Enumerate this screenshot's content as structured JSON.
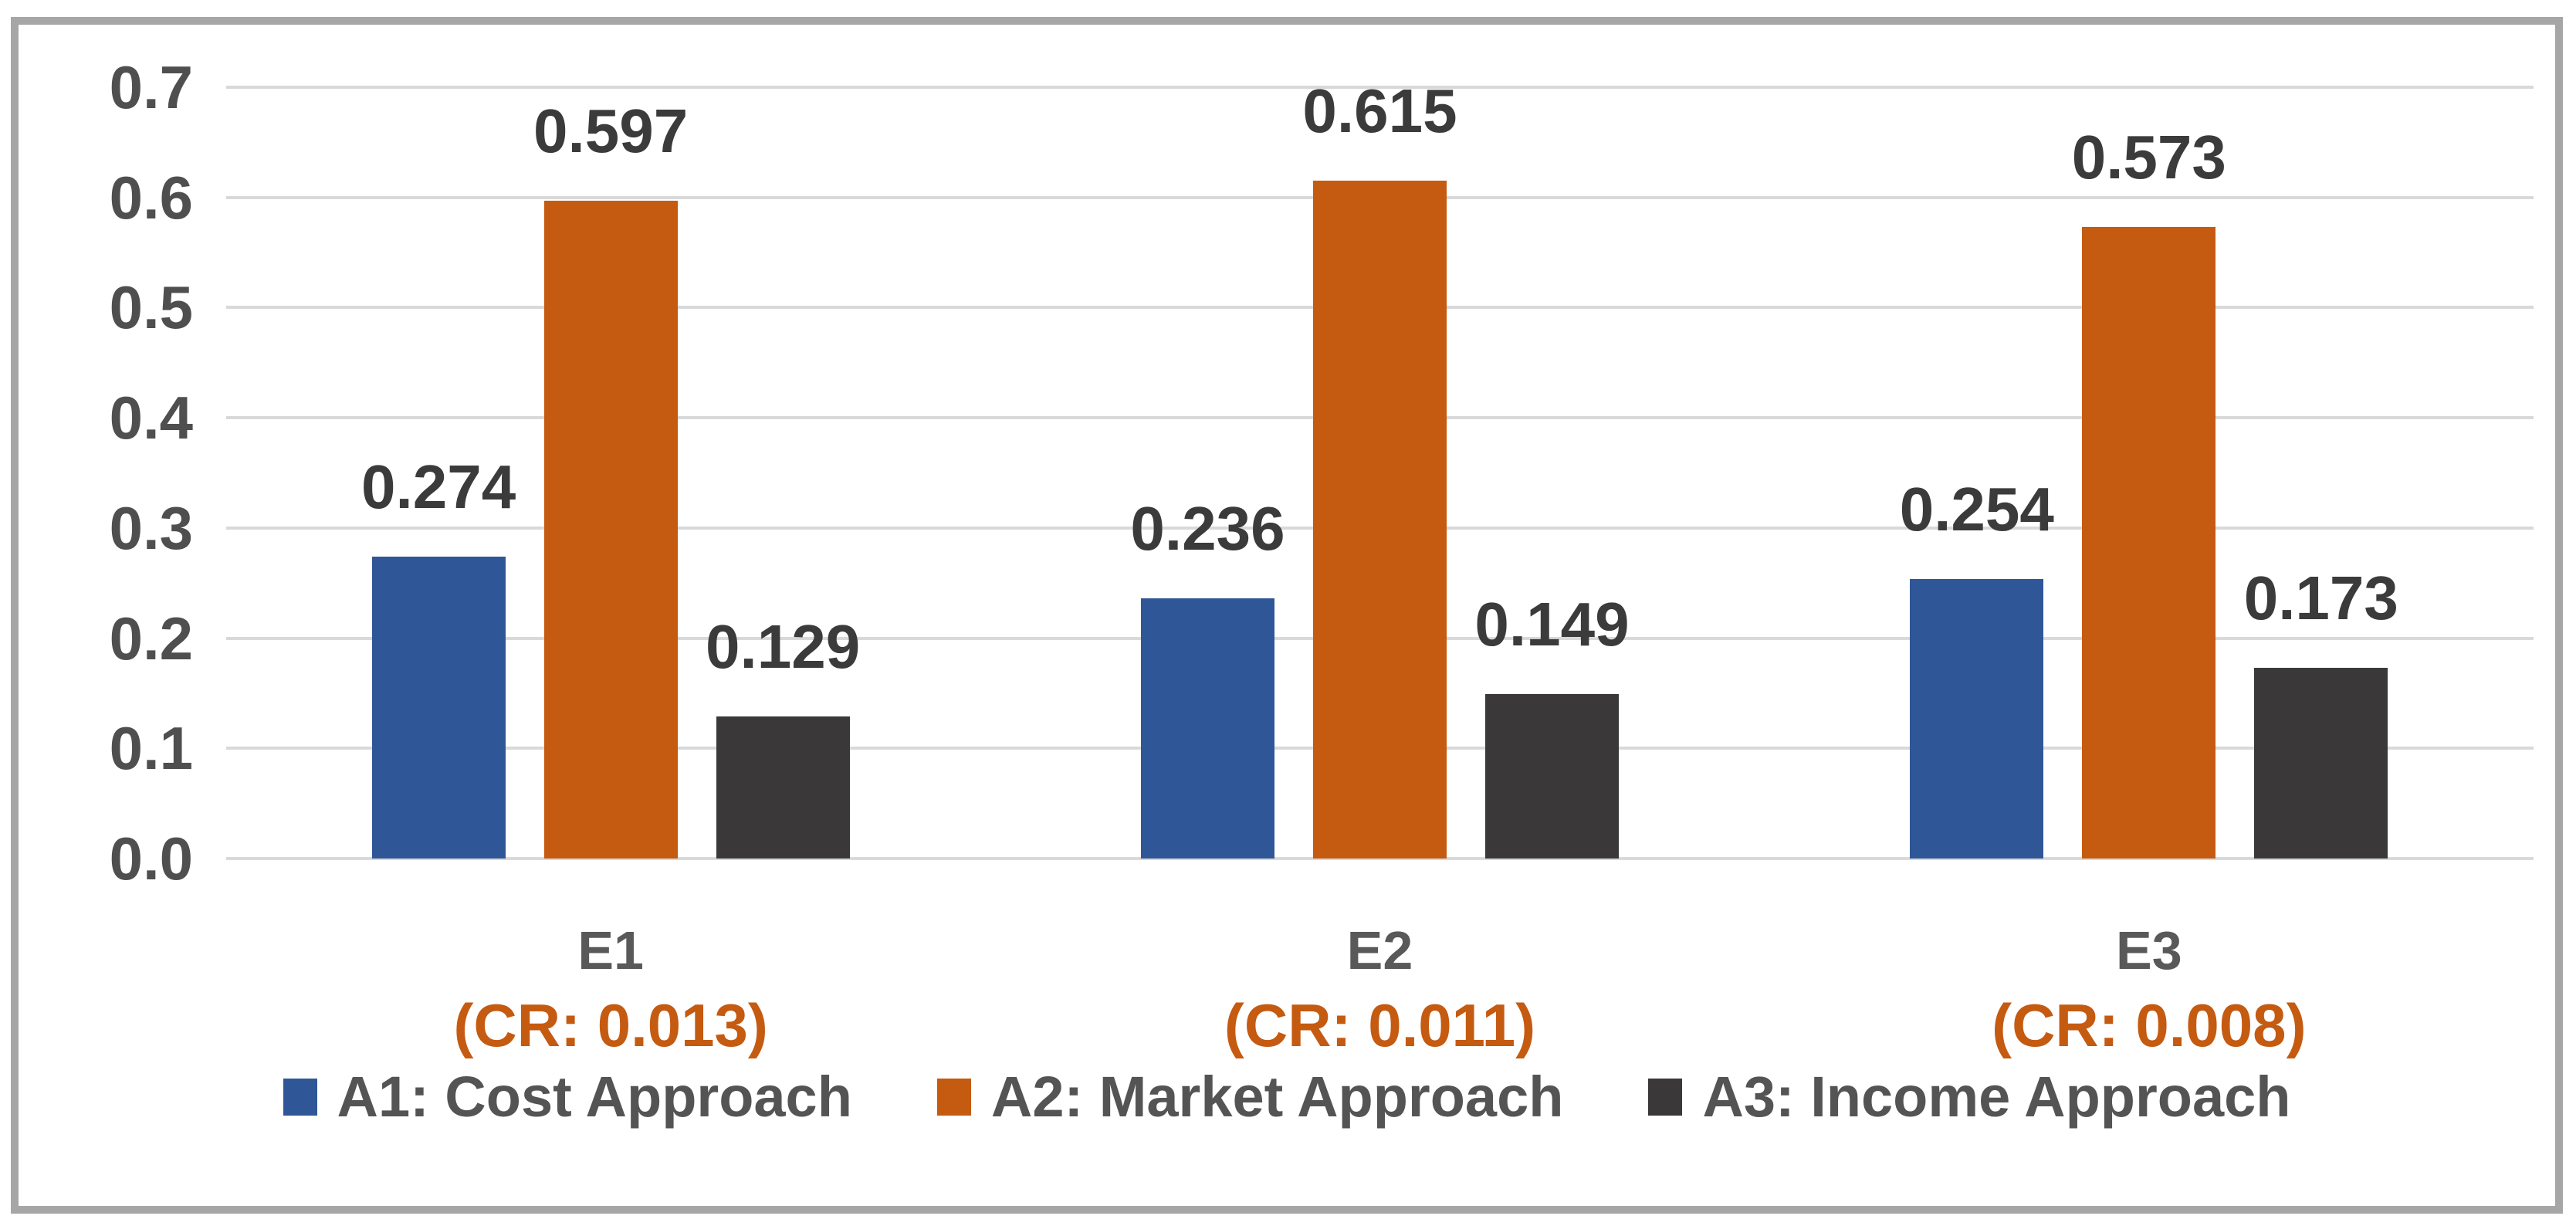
{
  "chart_data": {
    "type": "bar",
    "title": "",
    "categories": [
      "E1",
      "E2",
      "E3"
    ],
    "category_sublabels": [
      "(CR: 0.013)",
      "(CR: 0.011)",
      "(CR: 0.008)"
    ],
    "series": [
      {
        "name": "A1: Cost Approach",
        "color": "#2F5797",
        "values": [
          0.274,
          0.236,
          0.254
        ]
      },
      {
        "name": "A2: Market Approach",
        "color": "#C55A11",
        "values": [
          0.597,
          0.615,
          0.573
        ]
      },
      {
        "name": "A3: Income Approach",
        "color": "#3A3838",
        "values": [
          0.129,
          0.149,
          0.173
        ]
      }
    ],
    "y_ticks": [
      "0.0",
      "0.1",
      "0.2",
      "0.3",
      "0.4",
      "0.5",
      "0.6",
      "0.7"
    ],
    "ylim": [
      0,
      0.7
    ],
    "grid": true,
    "legend_position": "bottom",
    "xlabel": "",
    "ylabel": ""
  },
  "colors": {
    "bar_blue": "#2F5797",
    "bar_orange": "#C55A11",
    "bar_dark": "#3A3838",
    "gridline": "#D9D9D9",
    "frame_border": "#A6A6A6",
    "axis_tick_text": "#4F4F4F",
    "value_label_text": "#3B3B3B",
    "category_text": "#595959",
    "cr_text": "#C55A11",
    "legend_text": "#545454"
  }
}
